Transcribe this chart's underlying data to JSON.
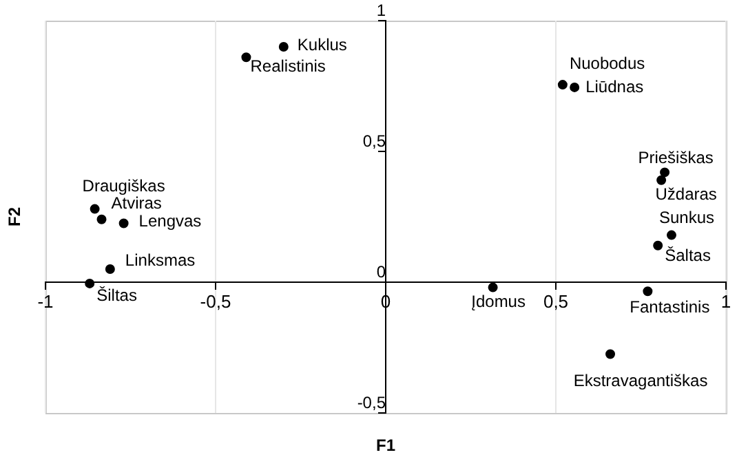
{
  "chart_data": {
    "type": "scatter",
    "xlabel": "F1",
    "ylabel": "F2",
    "x": [
      -0.3,
      -0.41,
      0.52,
      0.555,
      0.82,
      0.81,
      0.84,
      0.8,
      0.77,
      0.315,
      0.66,
      -0.855,
      -0.835,
      -0.77,
      -0.81,
      -0.87
    ],
    "series": [
      {
        "color": "#000000",
        "values": [
          0.9,
          0.86,
          0.755,
          0.745,
          0.42,
          0.39,
          0.18,
          0.14,
          -0.035,
          -0.02,
          -0.275,
          0.28,
          0.24,
          0.225,
          0.05,
          -0.005
        ]
      }
    ],
    "annotations": [
      {
        "text": "Kuklus",
        "x": -0.3,
        "y": 0.9
      },
      {
        "text": "Realistinis",
        "x": -0.41,
        "y": 0.86
      },
      {
        "text": "Nuobodus",
        "x": 0.52,
        "y": 0.755
      },
      {
        "text": "Liūdnas",
        "x": 0.555,
        "y": 0.745
      },
      {
        "text": "Priešiškas",
        "x": 0.82,
        "y": 0.42
      },
      {
        "text": "Uždaras",
        "x": 0.81,
        "y": 0.39
      },
      {
        "text": "Sunkus",
        "x": 0.84,
        "y": 0.18
      },
      {
        "text": "Šaltas",
        "x": 0.8,
        "y": 0.14
      },
      {
        "text": "Fantastinis",
        "x": 0.77,
        "y": -0.035
      },
      {
        "text": "Įdomus",
        "x": 0.315,
        "y": -0.02
      },
      {
        "text": "Ekstravagantiškas",
        "x": 0.66,
        "y": -0.275
      },
      {
        "text": "Draugiškas",
        "x": -0.855,
        "y": 0.28
      },
      {
        "text": "Atviras",
        "x": -0.835,
        "y": 0.24
      },
      {
        "text": "Lengvas",
        "x": -0.77,
        "y": 0.225
      },
      {
        "text": "Linksmas",
        "x": -0.81,
        "y": 0.05
      },
      {
        "text": "Šiltas",
        "x": -0.87,
        "y": -0.005
      }
    ],
    "xlim": [
      -1,
      1
    ],
    "ylim": [
      -0.5,
      1
    ],
    "xticks": [
      {
        "value": -1,
        "label": "-1"
      },
      {
        "value": -0.5,
        "label": "-0,5"
      },
      {
        "value": 0,
        "label": "0"
      },
      {
        "value": 0.5,
        "label": "0,5"
      },
      {
        "value": 1,
        "label": "1"
      }
    ],
    "yticks": [
      {
        "value": -0.5,
        "label": "-0,5"
      },
      {
        "value": 0,
        "label": "0"
      },
      {
        "value": 0.5,
        "label": "0,5"
      },
      {
        "value": 1,
        "label": "1"
      }
    ],
    "grid": "x",
    "marker": "circle",
    "legend": false
  }
}
